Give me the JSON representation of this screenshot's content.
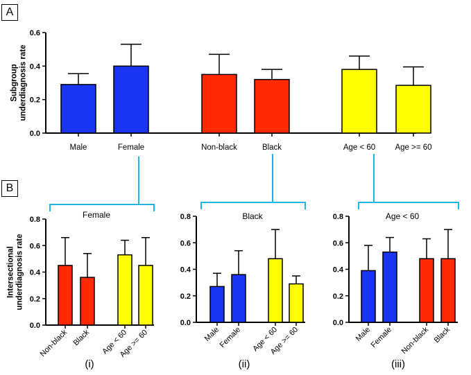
{
  "panels": {
    "a": "A",
    "b": "B"
  },
  "colors": {
    "blue": "#1a35f2",
    "red": "#ff2a00",
    "yellow": "#ffff00",
    "connector": "#1fb4e6"
  },
  "chart_data": [
    {
      "id": "A",
      "type": "bar",
      "ylabel": "Subgroup\nunderdiagnosis rate",
      "ylim": [
        0,
        0.6
      ],
      "yticks": [
        "0.0",
        "0.2",
        "0.4",
        "0.6"
      ],
      "categories": [
        "Male",
        "Female",
        "Non-black",
        "Black",
        "Age < 60",
        "Age >= 60"
      ],
      "values": [
        0.29,
        0.4,
        0.35,
        0.32,
        0.38,
        0.285
      ],
      "errors": [
        0.065,
        0.13,
        0.12,
        0.06,
        0.08,
        0.11
      ],
      "colors": [
        "blue",
        "blue",
        "red",
        "red",
        "yellow",
        "yellow"
      ]
    },
    {
      "id": "i",
      "type": "bar",
      "title": "Female",
      "caption": "(i)",
      "ylabel": "Intersectional\nunderdiagnosis rate",
      "ylim": [
        0,
        0.8
      ],
      "yticks": [
        "0.0",
        "0.2",
        "0.4",
        "0.6",
        "0.8"
      ],
      "categories": [
        "Non-black",
        "Black",
        "Age < 60",
        "Age >= 60"
      ],
      "values": [
        0.45,
        0.36,
        0.53,
        0.45
      ],
      "errors": [
        0.21,
        0.18,
        0.11,
        0.21
      ],
      "colors": [
        "red",
        "red",
        "yellow",
        "yellow"
      ]
    },
    {
      "id": "ii",
      "type": "bar",
      "title": "Black",
      "caption": "(ii)",
      "ylim": [
        0,
        0.8
      ],
      "yticks": [
        "0.0",
        "0.2",
        "0.4",
        "0.6",
        "0.8"
      ],
      "categories": [
        "Male",
        "Female",
        "Age < 60",
        "Age >= 60"
      ],
      "values": [
        0.27,
        0.36,
        0.48,
        0.29
      ],
      "errors": [
        0.1,
        0.18,
        0.22,
        0.06
      ],
      "colors": [
        "blue",
        "blue",
        "yellow",
        "yellow"
      ]
    },
    {
      "id": "iii",
      "type": "bar",
      "title": "Age < 60",
      "caption": "(iii)",
      "ylim": [
        0,
        0.8
      ],
      "yticks": [
        "0.0",
        "0.2",
        "0.4",
        "0.6",
        "0.8"
      ],
      "categories": [
        "Male",
        "Female",
        "Non-black",
        "Black"
      ],
      "values": [
        0.39,
        0.53,
        0.48,
        0.48
      ],
      "errors": [
        0.19,
        0.11,
        0.15,
        0.22
      ],
      "colors": [
        "blue",
        "blue",
        "red",
        "red"
      ]
    }
  ]
}
